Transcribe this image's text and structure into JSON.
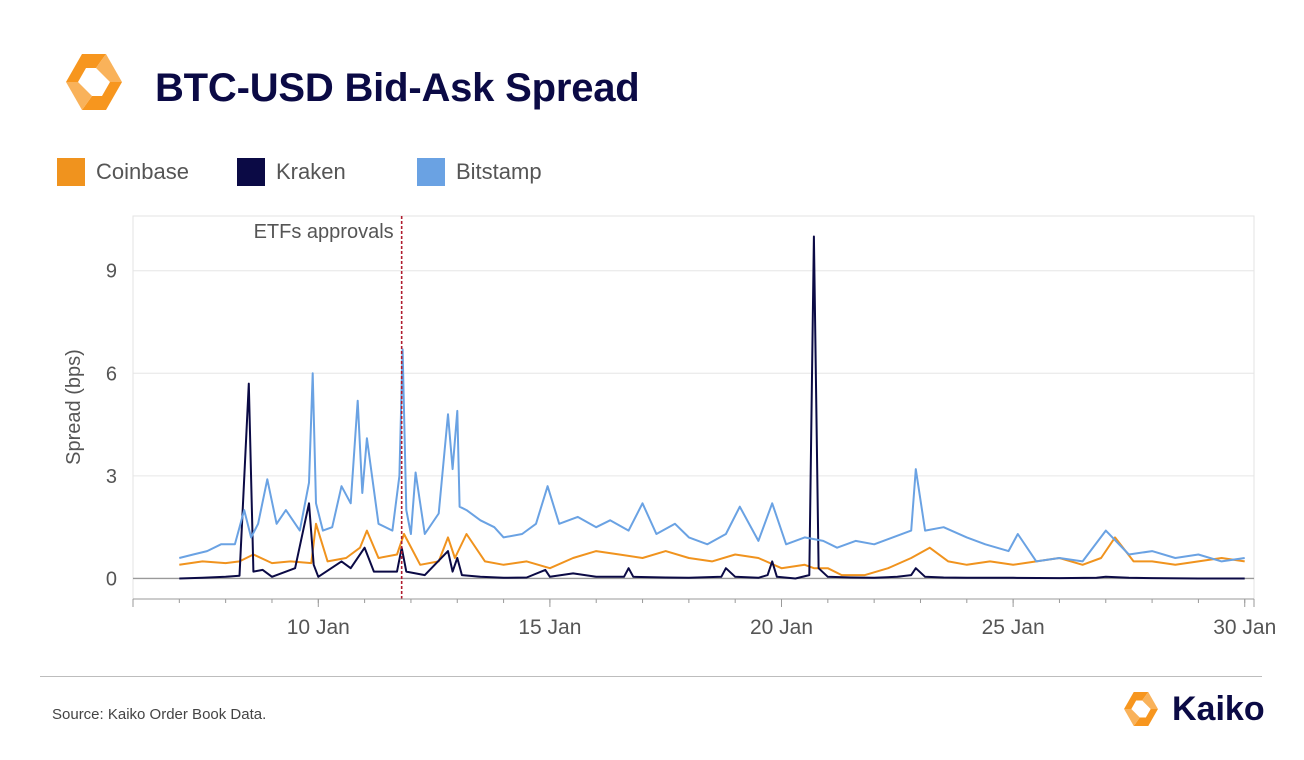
{
  "header": {
    "title": "BTC-USD Bid-Ask Spread"
  },
  "legend": [
    {
      "label": "Coinbase",
      "color": "#f0931e"
    },
    {
      "label": "Kraken",
      "color": "#0b0a45"
    },
    {
      "label": "Bitstamp",
      "color": "#6aa2e3"
    }
  ],
  "footer": {
    "source": "Source: Kaiko Order Book Data.",
    "brand": "Kaiko"
  },
  "colors": {
    "brand_orange": "#f7961e",
    "brand_navy": "#0b0a45",
    "event_line": "#b01c2e"
  },
  "chart_data": {
    "type": "line",
    "title": "BTC-USD Bid-Ask Spread",
    "ylabel": "Spread (bps)",
    "xlabel": "",
    "x_ticks": [
      "10 Jan",
      "15 Jan",
      "20 Jan",
      "25 Jan",
      "30 Jan"
    ],
    "x_tick_days": [
      10,
      15,
      20,
      25,
      30
    ],
    "xlim": [
      6,
      30.2
    ],
    "ylim": [
      -0.6,
      10.6
    ],
    "y_ticks": [
      0,
      3,
      6,
      9
    ],
    "grid": "horizontal",
    "legend_position": "top-left",
    "annotation": {
      "label": "ETFs approvals",
      "day": 11.8
    },
    "series": [
      {
        "name": "Coinbase",
        "color": "#f0931e",
        "x": [
          7.0,
          7.5,
          8.0,
          8.3,
          8.6,
          9.0,
          9.4,
          9.85,
          9.95,
          10.2,
          10.6,
          10.9,
          11.05,
          11.3,
          11.7,
          11.85,
          12.2,
          12.6,
          12.8,
          12.95,
          13.2,
          13.6,
          14.0,
          14.5,
          15.0,
          15.5,
          16.0,
          16.5,
          17.0,
          17.5,
          18.0,
          18.5,
          19.0,
          19.5,
          20.0,
          20.5,
          20.7,
          21.0,
          21.3,
          21.8,
          22.3,
          22.8,
          23.2,
          23.6,
          24.0,
          24.5,
          25.0,
          25.5,
          26.0,
          26.5,
          26.9,
          27.2,
          27.6,
          28.0,
          28.5,
          29.0,
          29.5,
          30.0
        ],
        "values": [
          0.4,
          0.5,
          0.45,
          0.5,
          0.7,
          0.45,
          0.5,
          0.45,
          1.6,
          0.5,
          0.6,
          0.9,
          1.4,
          0.6,
          0.7,
          1.3,
          0.4,
          0.5,
          1.2,
          0.6,
          1.3,
          0.5,
          0.4,
          0.5,
          0.3,
          0.6,
          0.8,
          0.7,
          0.6,
          0.8,
          0.6,
          0.5,
          0.7,
          0.6,
          0.3,
          0.4,
          0.3,
          0.3,
          0.1,
          0.1,
          0.3,
          0.6,
          0.9,
          0.5,
          0.4,
          0.5,
          0.4,
          0.5,
          0.6,
          0.4,
          0.6,
          1.2,
          0.5,
          0.5,
          0.4,
          0.5,
          0.6,
          0.5
        ]
      },
      {
        "name": "Kraken",
        "color": "#0b0a45",
        "x": [
          7.0,
          7.5,
          8.0,
          8.3,
          8.5,
          8.6,
          8.8,
          9.0,
          9.5,
          9.8,
          9.9,
          10.0,
          10.5,
          10.7,
          11.0,
          11.2,
          11.7,
          11.8,
          11.9,
          12.3,
          12.8,
          12.9,
          13.0,
          13.1,
          13.5,
          14.0,
          14.5,
          14.9,
          15.0,
          15.5,
          16.0,
          16.6,
          16.7,
          16.8,
          17.5,
          18.0,
          18.7,
          18.8,
          19.0,
          19.5,
          19.7,
          19.8,
          19.9,
          20.3,
          20.6,
          20.7,
          20.8,
          21.0,
          21.5,
          22.0,
          22.5,
          22.8,
          22.9,
          23.1,
          23.5,
          24.0,
          25.0,
          26.0,
          26.8,
          27.0,
          27.5,
          28.0,
          29.0,
          30.0
        ],
        "values": [
          0.0,
          0.02,
          0.05,
          0.08,
          5.7,
          0.2,
          0.25,
          0.05,
          0.3,
          2.2,
          0.4,
          0.05,
          0.5,
          0.3,
          0.9,
          0.2,
          0.2,
          0.9,
          0.2,
          0.1,
          0.8,
          0.2,
          0.6,
          0.1,
          0.05,
          0.02,
          0.03,
          0.25,
          0.05,
          0.15,
          0.05,
          0.05,
          0.3,
          0.05,
          0.03,
          0.02,
          0.05,
          0.3,
          0.05,
          0.02,
          0.1,
          0.5,
          0.05,
          0.0,
          0.1,
          10.0,
          0.3,
          0.05,
          0.03,
          0.02,
          0.05,
          0.1,
          0.3,
          0.05,
          0.03,
          0.02,
          0.02,
          0.01,
          0.02,
          0.05,
          0.02,
          0.01,
          0.0,
          0.0
        ]
      },
      {
        "name": "Bitstamp",
        "color": "#6aa2e3",
        "x": [
          7.0,
          7.3,
          7.6,
          7.9,
          8.2,
          8.4,
          8.55,
          8.7,
          8.9,
          9.1,
          9.3,
          9.6,
          9.8,
          9.88,
          9.95,
          10.1,
          10.3,
          10.5,
          10.7,
          10.85,
          10.95,
          11.05,
          11.3,
          11.6,
          11.75,
          11.82,
          11.9,
          12.0,
          12.1,
          12.3,
          12.6,
          12.8,
          12.9,
          13.0,
          13.05,
          13.2,
          13.5,
          13.8,
          14.0,
          14.4,
          14.7,
          14.95,
          15.2,
          15.6,
          16.0,
          16.3,
          16.7,
          17.0,
          17.3,
          17.7,
          18.0,
          18.4,
          18.8,
          19.1,
          19.5,
          19.8,
          20.1,
          20.5,
          20.9,
          21.2,
          21.6,
          22.0,
          22.4,
          22.8,
          22.9,
          23.1,
          23.5,
          24.0,
          24.4,
          24.9,
          25.1,
          25.5,
          26.0,
          26.5,
          27.0,
          27.5,
          28.0,
          28.5,
          29.0,
          29.5,
          30.0
        ],
        "values": [
          0.6,
          0.7,
          0.8,
          1.0,
          1.0,
          2.0,
          1.2,
          1.6,
          2.9,
          1.6,
          2.0,
          1.4,
          2.8,
          6.0,
          2.2,
          1.4,
          1.5,
          2.7,
          2.2,
          5.2,
          2.5,
          4.1,
          1.6,
          1.4,
          3.0,
          6.7,
          2.0,
          1.3,
          3.1,
          1.3,
          1.9,
          4.8,
          3.2,
          4.9,
          2.1,
          2.0,
          1.7,
          1.5,
          1.2,
          1.3,
          1.6,
          2.7,
          1.6,
          1.8,
          1.5,
          1.7,
          1.4,
          2.2,
          1.3,
          1.6,
          1.2,
          1.0,
          1.3,
          2.1,
          1.1,
          2.2,
          1.0,
          1.2,
          1.1,
          0.9,
          1.1,
          1.0,
          1.2,
          1.4,
          3.2,
          1.4,
          1.5,
          1.2,
          1.0,
          0.8,
          1.3,
          0.5,
          0.6,
          0.5,
          1.4,
          0.7,
          0.8,
          0.6,
          0.7,
          0.5,
          0.6
        ]
      }
    ]
  }
}
